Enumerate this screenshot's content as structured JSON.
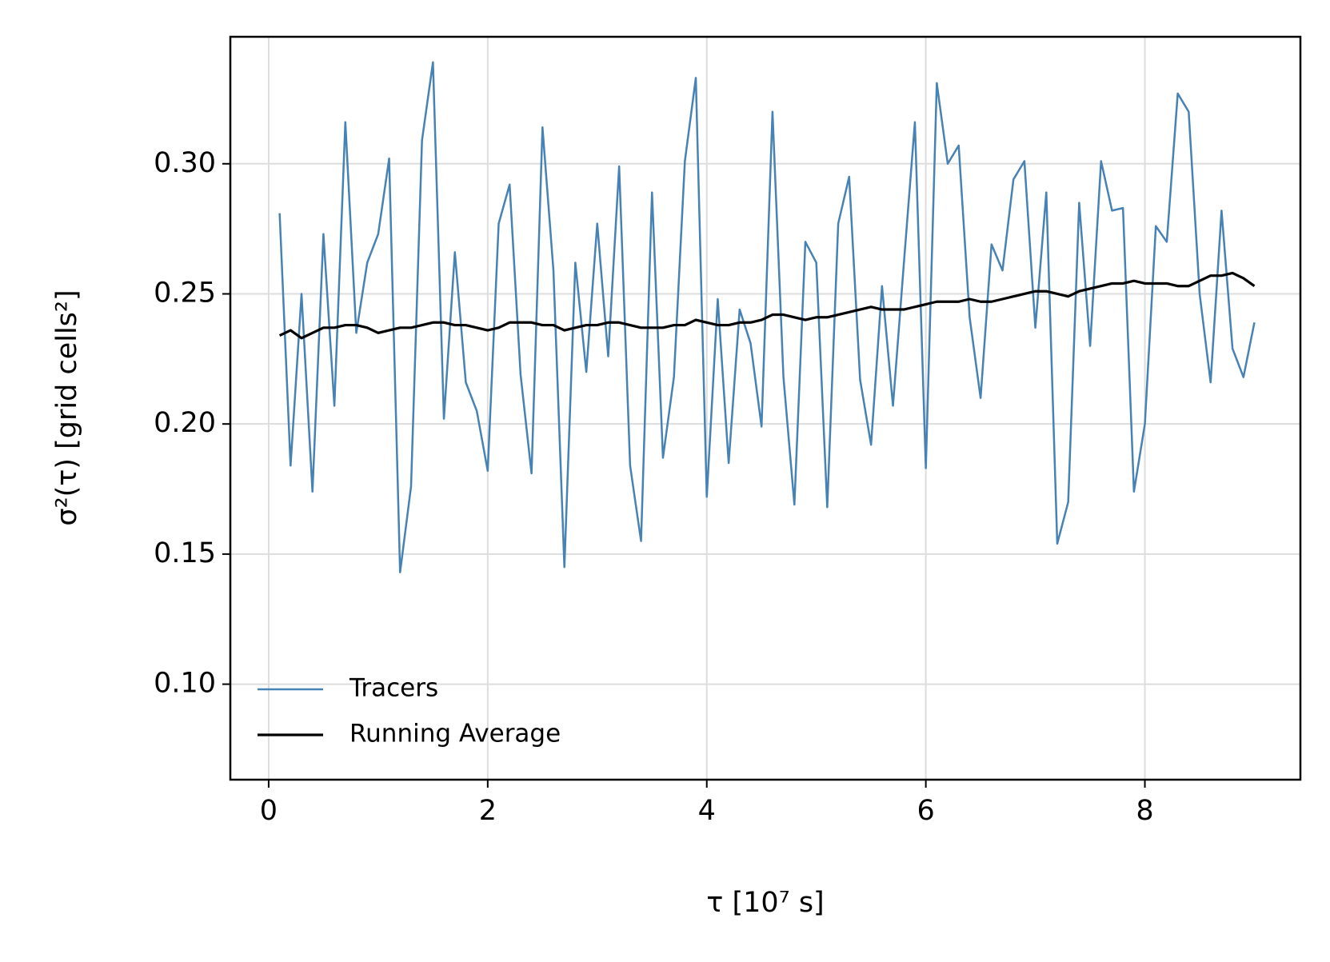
{
  "chart_data": {
    "type": "line",
    "x_label": "τ [10⁷ s]",
    "y_label": "σ²(τ) [grid cells²]",
    "x": [
      0.1,
      0.2,
      0.3,
      0.4,
      0.5,
      0.6,
      0.7,
      0.8,
      0.9,
      1.0,
      1.1,
      1.2,
      1.3,
      1.4,
      1.5,
      1.6,
      1.7,
      1.8,
      1.9,
      2.0,
      2.1,
      2.2,
      2.3,
      2.4,
      2.5,
      2.6,
      2.7,
      2.8,
      2.9,
      3.0,
      3.1,
      3.2,
      3.3,
      3.4,
      3.5,
      3.6,
      3.7,
      3.8,
      3.9,
      4.0,
      4.1,
      4.2,
      4.3,
      4.4,
      4.5,
      4.6,
      4.7,
      4.8,
      4.9,
      5.0,
      5.1,
      5.2,
      5.3,
      5.4,
      5.5,
      5.6,
      5.7,
      5.8,
      5.9,
      6.0,
      6.1,
      6.2,
      6.3,
      6.4,
      6.5,
      6.6,
      6.7,
      6.8,
      6.9,
      7.0,
      7.1,
      7.2,
      7.3,
      7.4,
      7.5,
      7.6,
      7.7,
      7.8,
      7.9,
      8.0,
      8.1,
      8.2,
      8.3,
      8.4,
      8.5,
      8.6,
      8.7,
      8.8,
      8.9,
      9.0
    ],
    "series": [
      {
        "name": "Tracers",
        "color": "#4682b4",
        "values": [
          0.281,
          0.184,
          0.25,
          0.174,
          0.273,
          0.207,
          0.316,
          0.235,
          0.262,
          0.273,
          0.302,
          0.143,
          0.176,
          0.309,
          0.339,
          0.202,
          0.266,
          0.216,
          0.205,
          0.182,
          0.277,
          0.292,
          0.219,
          0.181,
          0.314,
          0.259,
          0.145,
          0.262,
          0.22,
          0.277,
          0.226,
          0.299,
          0.184,
          0.155,
          0.289,
          0.187,
          0.218,
          0.301,
          0.333,
          0.172,
          0.248,
          0.185,
          0.244,
          0.231,
          0.199,
          0.32,
          0.218,
          0.169,
          0.27,
          0.262,
          0.168,
          0.277,
          0.295,
          0.217,
          0.192,
          0.253,
          0.207,
          0.262,
          0.316,
          0.183,
          0.331,
          0.3,
          0.307,
          0.241,
          0.21,
          0.269,
          0.259,
          0.294,
          0.301,
          0.237,
          0.289,
          0.154,
          0.17,
          0.285,
          0.23,
          0.301,
          0.282,
          0.283,
          0.174,
          0.2,
          0.276,
          0.27,
          0.327,
          0.32,
          0.25,
          0.216,
          0.282,
          0.229,
          0.218,
          0.239
        ]
      },
      {
        "name": "Running Average",
        "color": "#000000",
        "values": [
          0.234,
          0.236,
          0.233,
          0.235,
          0.237,
          0.237,
          0.238,
          0.238,
          0.237,
          0.235,
          0.236,
          0.237,
          0.237,
          0.238,
          0.239,
          0.239,
          0.238,
          0.238,
          0.237,
          0.236,
          0.237,
          0.239,
          0.239,
          0.239,
          0.238,
          0.238,
          0.236,
          0.237,
          0.238,
          0.238,
          0.239,
          0.239,
          0.238,
          0.237,
          0.237,
          0.237,
          0.238,
          0.238,
          0.24,
          0.239,
          0.238,
          0.238,
          0.239,
          0.239,
          0.24,
          0.242,
          0.242,
          0.241,
          0.24,
          0.241,
          0.241,
          0.242,
          0.243,
          0.244,
          0.245,
          0.244,
          0.244,
          0.244,
          0.245,
          0.246,
          0.247,
          0.247,
          0.247,
          0.248,
          0.247,
          0.247,
          0.248,
          0.249,
          0.25,
          0.251,
          0.251,
          0.25,
          0.249,
          0.251,
          0.252,
          0.253,
          0.254,
          0.254,
          0.255,
          0.254,
          0.254,
          0.254,
          0.253,
          0.253,
          0.255,
          0.257,
          0.257,
          0.258,
          0.256,
          0.253
        ]
      }
    ],
    "xlim": [
      -0.35,
      9.42
    ],
    "xticks": [
      0,
      2,
      4,
      6,
      8
    ],
    "ylim": [
      0.0633,
      0.3488
    ],
    "yticks": [
      {
        "value": 0.1,
        "label": "0.10"
      },
      0.15,
      {
        "value": 0.2,
        "label": "0.20"
      },
      0.25,
      {
        "value": 0.3,
        "label": "0.30"
      }
    ],
    "grid": true,
    "legend": "lower left"
  }
}
